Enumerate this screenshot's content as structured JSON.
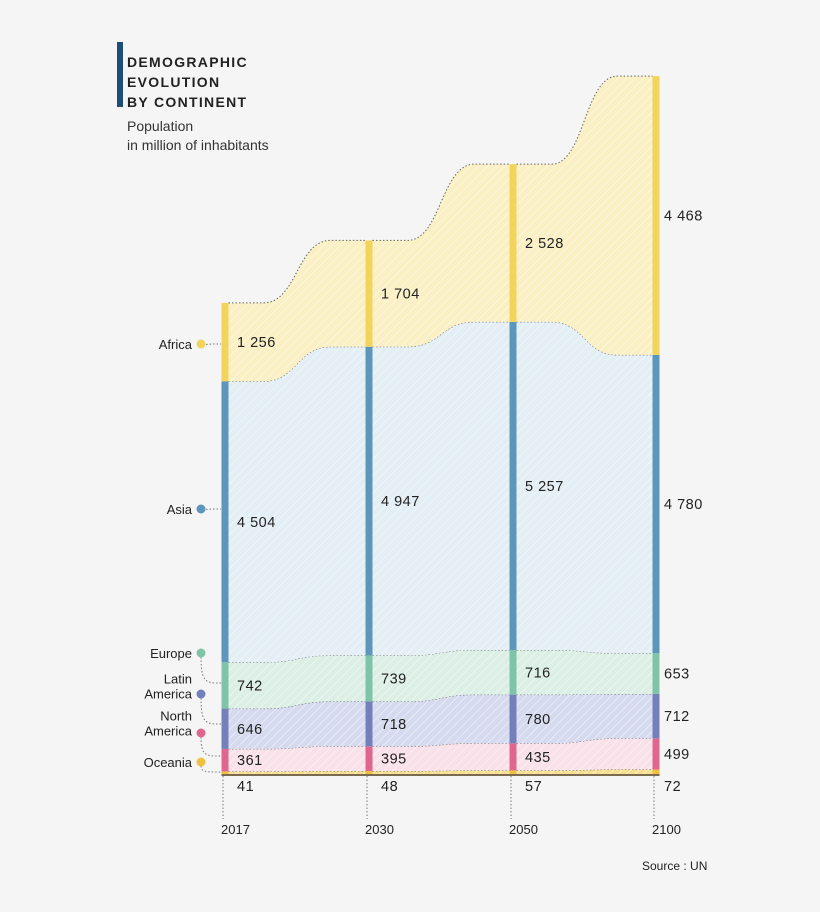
{
  "title": "DEMOGRAPHIC\nEVOLUTION\nBY CONTINENT",
  "subtitle": "Population\nin million of inhabitants",
  "source": "Source : UN",
  "chart_data": {
    "type": "area",
    "stacked": true,
    "categories": [
      "2017",
      "2030",
      "2050",
      "2100"
    ],
    "series": [
      {
        "name": "Oceania",
        "values": [
          41,
          48,
          57,
          72
        ],
        "color": "#f0c040",
        "fill": "#f6df90"
      },
      {
        "name": "North America",
        "values": [
          361,
          395,
          435,
          499
        ],
        "color": "#e06690",
        "fill": "#f9e1ea"
      },
      {
        "name": "Latin America",
        "values": [
          646,
          718,
          780,
          712
        ],
        "color": "#7480bc",
        "fill": "#d6daef"
      },
      {
        "name": "Europe",
        "values": [
          742,
          739,
          716,
          653
        ],
        "color": "#7fc4a8",
        "fill": "#dcefe5"
      },
      {
        "name": "Asia",
        "values": [
          4504,
          4947,
          5257,
          4780
        ],
        "color": "#5b96bb",
        "fill": "#e3eef5"
      },
      {
        "name": "Africa",
        "values": [
          1256,
          1704,
          2528,
          4468
        ],
        "color": "#f2d45c",
        "fill": "#fbf0c4"
      }
    ],
    "value_labels": {
      "Oceania": [
        "41",
        "48",
        "57",
        "72"
      ],
      "North America": [
        "361",
        "395",
        "435",
        "499"
      ],
      "Latin America": [
        "646",
        "718",
        "780",
        "712"
      ],
      "Europe": [
        "742",
        "739",
        "716",
        "653"
      ],
      "Asia": [
        "4 504",
        "4 947",
        "5 257",
        "4 780"
      ],
      "Africa": [
        "1 256",
        "1 704",
        "2 528",
        "4 468"
      ]
    },
    "legend_labels": {
      "Africa": [
        "Africa"
      ],
      "Asia": [
        "Asia"
      ],
      "Europe": [
        "Europe"
      ],
      "Latin America": [
        "Latin",
        "America"
      ],
      "North America": [
        "North",
        "America"
      ],
      "Oceania": [
        "Oceania"
      ]
    },
    "legend_placement": "left",
    "grid": false
  }
}
